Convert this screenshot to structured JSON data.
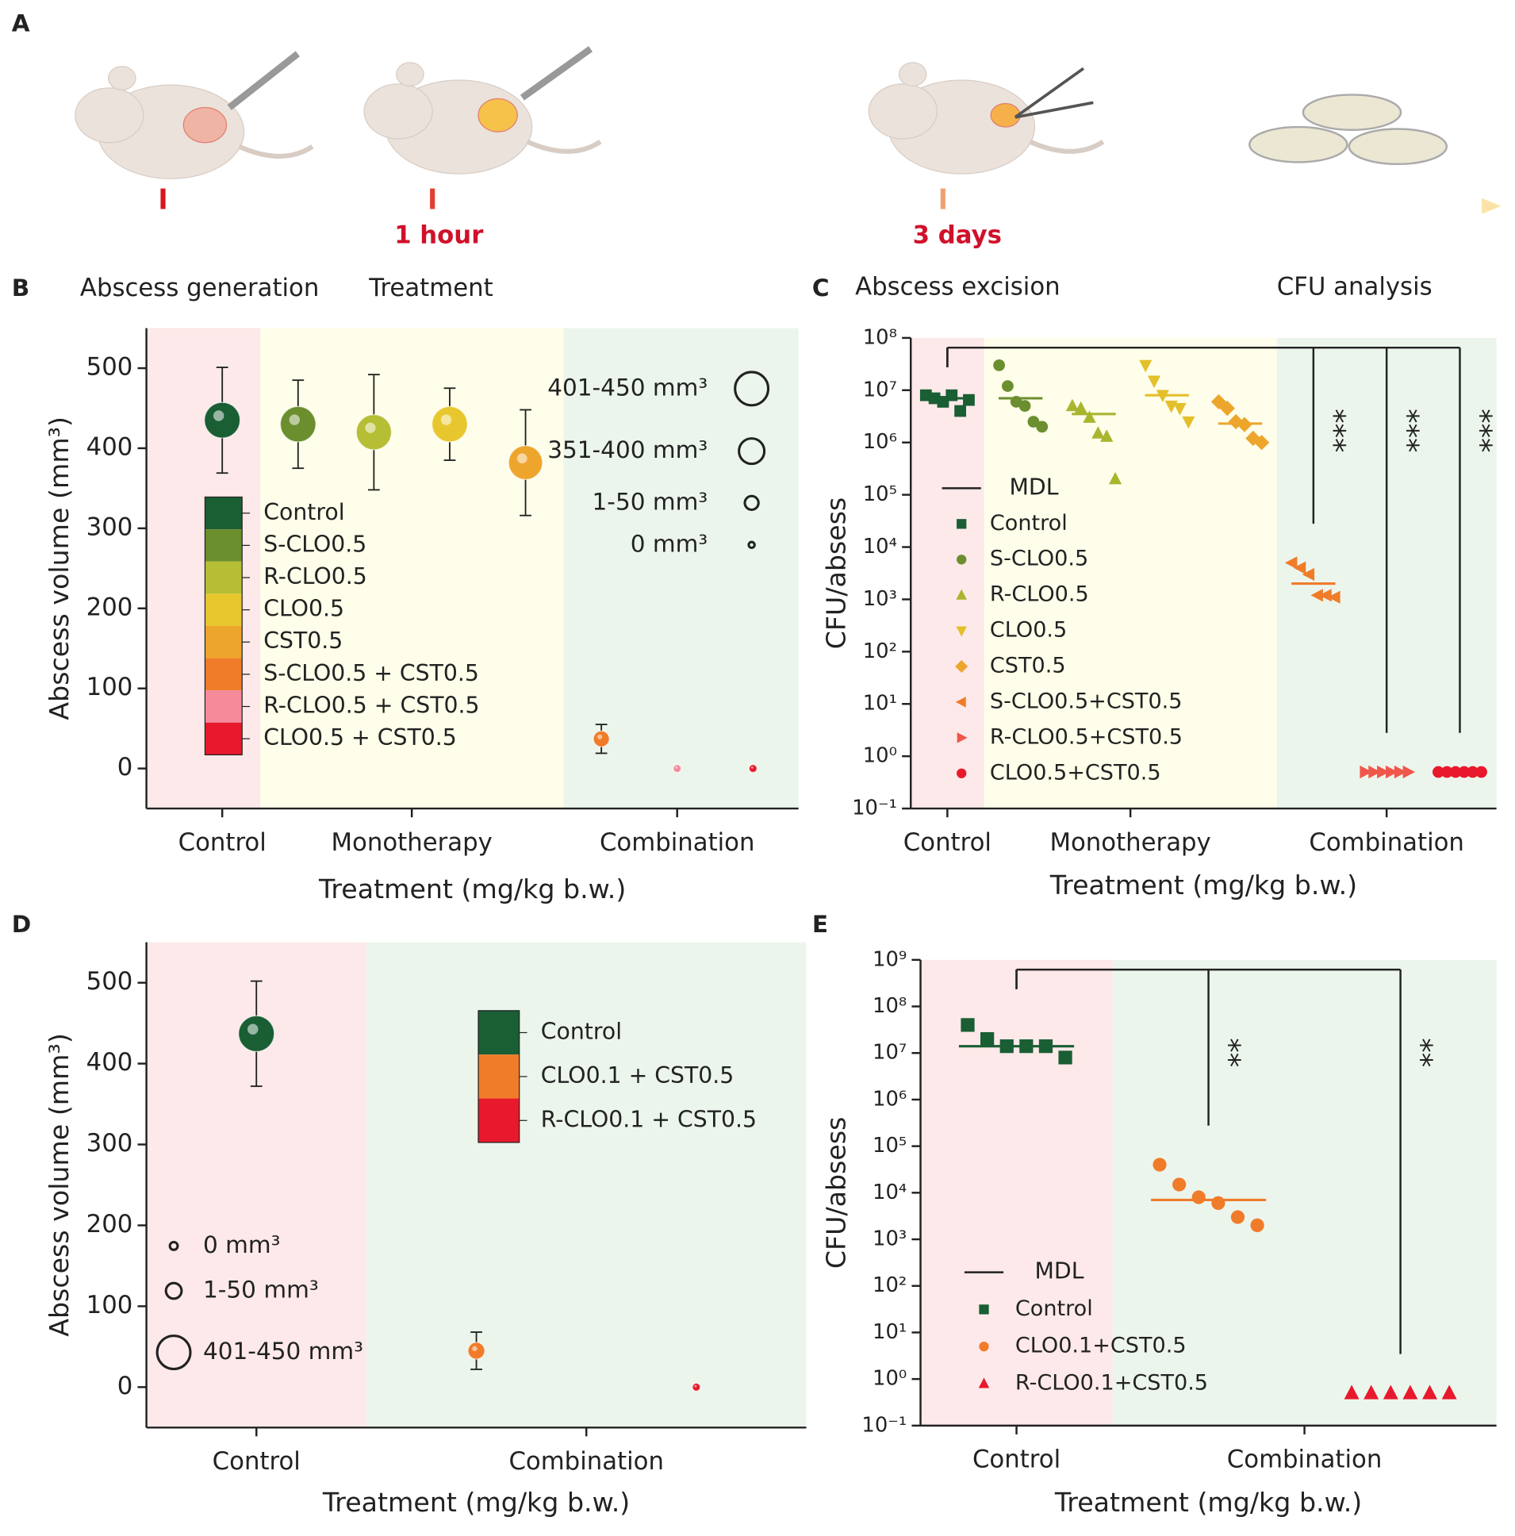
{
  "panel_a": {
    "panel": "A",
    "steps": [
      "Abscess generation",
      "Treatment",
      "Abscess excision",
      "CFU analysis"
    ],
    "times": [
      "1 hour",
      "3 days"
    ]
  },
  "chart_data": [
    {
      "panel": "B",
      "type": "bubble",
      "ylabel": "Abscess volume (mm³)",
      "xlabel": "Treatment (mg/kg b.w.)",
      "categories": [
        "Control",
        "S-CLO0.5",
        "R-CLO0.5",
        "CLO0.5",
        "CST0.5",
        "S-CLO0.5 + CST0.5",
        "R-CLO0.5 + CST0.5",
        "CLO0.5 + CST0.5"
      ],
      "values": [
        435,
        430,
        420,
        430,
        382,
        37,
        0,
        0
      ],
      "errors": [
        66,
        55,
        72,
        45,
        66,
        18,
        null,
        null
      ],
      "colors": [
        "#1a5e34",
        "#6b8e2e",
        "#b5be34",
        "#e8c72e",
        "#eda52c",
        "#f07c2a",
        "#f58a9a",
        "#e8192c"
      ],
      "groups": [
        {
          "label": "Control",
          "size": 1,
          "color": "#fde9e9"
        },
        {
          "label": "Monotherapy",
          "size": 4,
          "color": "#fefeea"
        },
        {
          "label": "Combination",
          "size": 3,
          "color": "#ecf5ec"
        }
      ],
      "ylim": [
        -50,
        550
      ],
      "yticks": [
        0,
        100,
        200,
        300,
        400,
        500
      ],
      "size_legend": [
        "401-450 mm³",
        "351-400 mm³",
        "1-50 mm³",
        "0 mm³"
      ]
    },
    {
      "panel": "C",
      "type": "scatter",
      "log_scale": true,
      "ylabel": "CFU/absess",
      "xlabel": "Treatment (mg/kg b.w.)",
      "series": [
        {
          "name": "Control",
          "color": "#1a5e34",
          "marker": "square",
          "values": [
            8000000,
            7000000,
            6000000,
            8000000,
            4000000,
            6500000
          ],
          "mean": 7000000
        },
        {
          "name": "S-CLO0.5",
          "color": "#6b8e2e",
          "marker": "circle",
          "values": [
            30000000,
            12000000,
            6000000,
            5000000,
            2500000,
            2000000
          ],
          "mean": 7000000
        },
        {
          "name": "R-CLO0.5",
          "color": "#a9b52e",
          "marker": "triangle-up",
          "values": [
            5000000,
            4500000,
            3000000,
            1500000,
            1300000,
            200000
          ],
          "mean": 3500000
        },
        {
          "name": "CLO0.5",
          "color": "#e3c02a",
          "marker": "triangle-down",
          "values": [
            30000000,
            15000000,
            8000000,
            5000000,
            4500000,
            2500000
          ],
          "mean": 8000000
        },
        {
          "name": "CST0.5",
          "color": "#eda52c",
          "marker": "diamond",
          "values": [
            6000000,
            4500000,
            2500000,
            2200000,
            1200000,
            1000000
          ],
          "mean": 2300000
        },
        {
          "name": "S-CLO0.5+CST0.5",
          "color": "#f07c2a",
          "marker": "triangle-left",
          "values": [
            5000,
            4000,
            3000,
            1200,
            1200,
            1100
          ],
          "mean": 2000
        },
        {
          "name": "R-CLO0.5+CST0.5",
          "color": "#f0564a",
          "marker": "triangle-right",
          "values": [
            0.5,
            0.5,
            0.5,
            0.5,
            0.5,
            0.5
          ]
        },
        {
          "name": "CLO0.5+CST0.5",
          "color": "#e8192c",
          "marker": "circle",
          "values": [
            0.5,
            0.5,
            0.5,
            0.5,
            0.5,
            0.5
          ]
        }
      ],
      "groups": [
        {
          "label": "Control",
          "size": 1,
          "color": "#fde9e9"
        },
        {
          "label": "Monotherapy",
          "size": 4,
          "color": "#fefeea"
        },
        {
          "label": "Combination",
          "size": 3,
          "color": "#ecf5ec"
        }
      ],
      "ylim": [
        0.1,
        100000000
      ],
      "yticks": [
        {
          "value": 0.1,
          "label": "10⁻¹"
        },
        {
          "value": 1,
          "label": "10⁰"
        },
        {
          "value": 10,
          "label": "10¹"
        },
        {
          "value": 100,
          "label": "10²"
        },
        {
          "value": 1000,
          "label": "10³"
        },
        {
          "value": 10000,
          "label": "10⁴"
        },
        {
          "value": 100000,
          "label": "10⁵"
        },
        {
          "value": 1000000,
          "label": "10⁶"
        },
        {
          "value": 10000000,
          "label": "10⁷"
        },
        {
          "value": 100000000,
          "label": "10⁸"
        }
      ],
      "legend_line": "MDL",
      "comparisons": [
        {
          "from": 0,
          "to": 5,
          "label": "***"
        },
        {
          "from": 0,
          "to": 6,
          "label": "***"
        },
        {
          "from": 0,
          "to": 7,
          "label": "***"
        }
      ]
    },
    {
      "panel": "D",
      "type": "bubble",
      "ylabel": "Abscess volume (mm³)",
      "xlabel": "Treatment (mg/kg b.w.)",
      "categories": [
        "Control",
        "CLO0.1 + CST0.5",
        "R-CLO0.1 + CST0.5"
      ],
      "values": [
        437,
        45,
        0
      ],
      "errors": [
        65,
        23,
        null
      ],
      "colors": [
        "#1a5e34",
        "#f07c2a",
        "#e8192c"
      ],
      "groups": [
        {
          "label": "Control",
          "size": 1,
          "color": "#fde9e9"
        },
        {
          "label": "Combination",
          "size": 2,
          "color": "#ecf5ec"
        }
      ],
      "ylim": [
        -50,
        550
      ],
      "yticks": [
        0,
        100,
        200,
        300,
        400,
        500
      ],
      "size_legend": [
        "0 mm³",
        "1-50 mm³",
        "401-450 mm³"
      ]
    },
    {
      "panel": "E",
      "type": "scatter",
      "log_scale": true,
      "ylabel": "CFU/absess",
      "xlabel": "Treatment (mg/kg b.w.)",
      "series": [
        {
          "name": "Control",
          "color": "#1a5e34",
          "marker": "square",
          "values": [
            40000000,
            20000000,
            14000000,
            14000000,
            14000000,
            8000000
          ],
          "mean": 14000000
        },
        {
          "name": "CLO0.1+CST0.5",
          "color": "#f07c2a",
          "marker": "circle",
          "values": [
            40000,
            15000,
            8000,
            6000,
            3000,
            2000
          ],
          "mean": 7000
        },
        {
          "name": "R-CLO0.1+CST0.5",
          "color": "#e8192c",
          "marker": "triangle-up",
          "values": [
            0.5,
            0.5,
            0.5,
            0.5,
            0.5,
            0.5
          ]
        }
      ],
      "groups": [
        {
          "label": "Control",
          "size": 1,
          "color": "#fde9e9"
        },
        {
          "label": "Combination",
          "size": 2,
          "color": "#ecf5ec"
        }
      ],
      "ylim": [
        0.1,
        1000000000
      ],
      "yticks": [
        {
          "value": 0.1,
          "label": "10⁻¹"
        },
        {
          "value": 1,
          "label": "10⁰"
        },
        {
          "value": 10,
          "label": "10¹"
        },
        {
          "value": 100,
          "label": "10²"
        },
        {
          "value": 1000,
          "label": "10³"
        },
        {
          "value": 10000,
          "label": "10⁴"
        },
        {
          "value": 100000,
          "label": "10⁵"
        },
        {
          "value": 1000000,
          "label": "10⁶"
        },
        {
          "value": 10000000,
          "label": "10⁷"
        },
        {
          "value": 100000000,
          "label": "10⁸"
        },
        {
          "value": 1000000000,
          "label": "10⁹"
        }
      ],
      "legend_line": "MDL",
      "comparisons": [
        {
          "from": 0,
          "to": 1,
          "label": "**"
        },
        {
          "from": 0,
          "to": 2,
          "label": "**"
        }
      ]
    }
  ]
}
